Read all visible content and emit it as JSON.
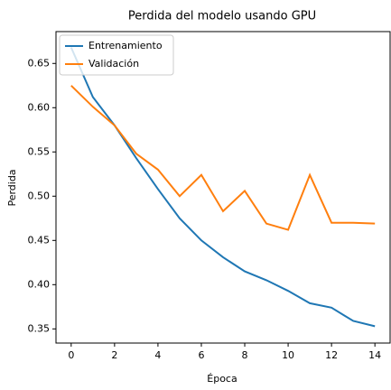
{
  "chart_data": {
    "type": "line",
    "title": "Perdida del modelo usando GPU",
    "x_label": "Época",
    "y_label": "Perdida",
    "x": [
      0,
      1,
      2,
      3,
      4,
      5,
      6,
      7,
      8,
      9,
      10,
      11,
      12,
      13,
      14
    ],
    "series": [
      {
        "name": "Entrenamiento",
        "color": "#1f77b4",
        "values": [
          0.668,
          0.612,
          0.58,
          0.543,
          0.508,
          0.475,
          0.45,
          0.431,
          0.415,
          0.405,
          0.393,
          0.379,
          0.374,
          0.359,
          0.353
        ]
      },
      {
        "name": "Validación",
        "color": "#ff7f0e",
        "values": [
          0.625,
          0.601,
          0.58,
          0.548,
          0.53,
          0.5,
          0.524,
          0.483,
          0.506,
          0.469,
          0.462,
          0.524,
          0.47,
          0.47,
          0.469
        ]
      }
    ],
    "xlim": [
      -0.7,
      14.7
    ],
    "xticks": [
      0,
      2,
      4,
      6,
      8,
      10,
      12,
      14
    ],
    "ylim": [
      0.334,
      0.686
    ],
    "yticks": [
      0.35,
      {
        "value": 0.4,
        "label": "0.40"
      },
      0.45,
      {
        "value": 0.5,
        "label": "0.50"
      },
      0.55,
      {
        "value": 0.6,
        "label": "0.60"
      },
      0.65
    ],
    "legend": "upper left"
  }
}
